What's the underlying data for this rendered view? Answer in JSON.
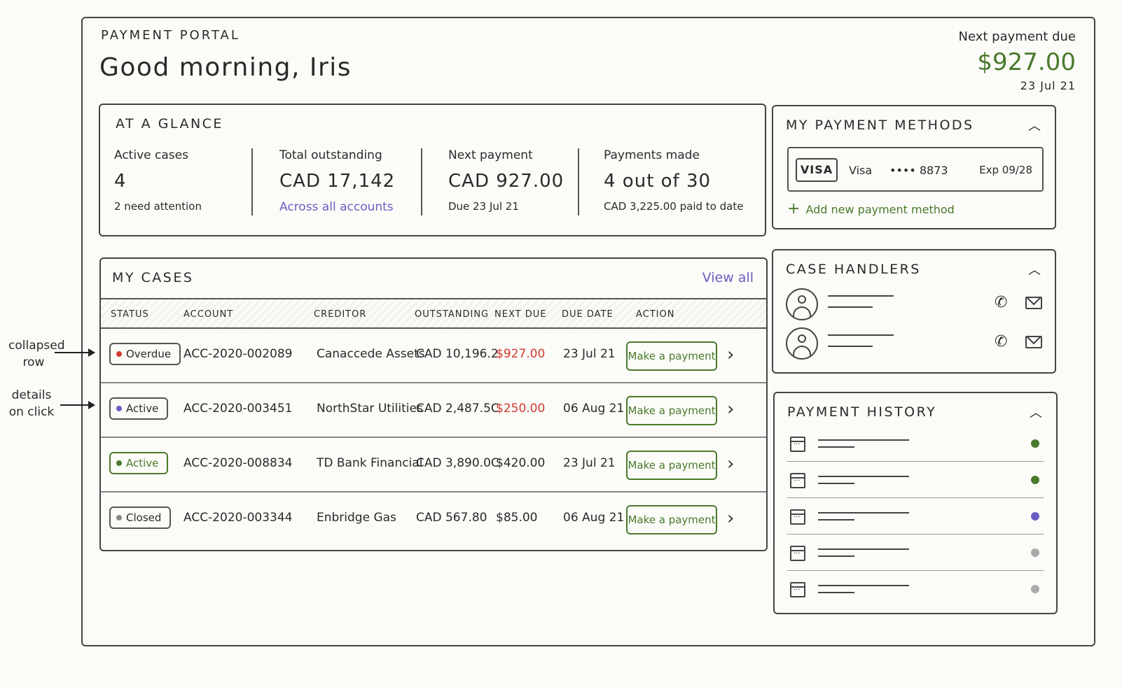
{
  "header": {
    "eyebrow": "PAYMENT PORTAL",
    "greeting": "Good morning, Iris",
    "next_due_label": "Next payment due",
    "next_due_amount": "$927.00",
    "next_due_date": "23 Jul 21"
  },
  "glance": {
    "title": "AT A GLANCE",
    "stats": [
      {
        "label": "Active cases",
        "value": "4",
        "sub": "2 need attention"
      },
      {
        "label": "Total outstanding",
        "value": "CAD 17,142",
        "sub": "Across all accounts"
      },
      {
        "label": "Next payment",
        "value": "CAD 927.00",
        "sub": "Due 23 Jul 21"
      },
      {
        "label": "Payments made",
        "value": "4 out of 30",
        "sub": "CAD 3,225.00 paid to date"
      }
    ]
  },
  "cases": {
    "title": "MY CASES",
    "view_all": "View all",
    "columns": [
      "STATUS",
      "ACCOUNT",
      "CREDITOR",
      "OUTSTANDING",
      "NEXT DUE",
      "DUE DATE",
      "ACTION"
    ],
    "rows": [
      {
        "status": "Overdue",
        "status_color": "#d53a2f",
        "account": "ACC-2020-002089",
        "creditor": "Canaccede Assets",
        "outstanding": "CAD 10,196.2",
        "next_due": "$927.00",
        "next_due_alert": true,
        "due_date": "23 Jul 21",
        "action": "Make a payment"
      },
      {
        "status": "Active",
        "status_color": "#6a5fc4",
        "account": "ACC-2020-003451",
        "creditor": "NorthStar Utilities",
        "outstanding": "CAD 2,487.5C",
        "next_due": "$250.00",
        "next_due_alert": true,
        "due_date": "06 Aug 21",
        "action": "Make a payment"
      },
      {
        "status": "Active",
        "status_color": "#4a7a2c",
        "account": "ACC-2020-008834",
        "creditor": "TD Bank Financial",
        "outstanding": "CAD 3,890.0C",
        "next_due": "$420.00",
        "next_due_alert": false,
        "due_date": "23 Jul 21",
        "action": "Make a payment"
      },
      {
        "status": "Closed",
        "status_color": "#888888",
        "account": "ACC-2020-003344",
        "creditor": "Enbridge Gas",
        "outstanding": "CAD 567.80",
        "next_due": "$85.00",
        "next_due_alert": false,
        "due_date": "06 Aug 21",
        "action": "Make a payment"
      }
    ]
  },
  "annotations": {
    "collapsed": "collapsed row",
    "details": "details on click"
  },
  "payment_methods": {
    "title": "MY PAYMENT METHODS",
    "card_logo": "VISA",
    "card_name": "Visa",
    "card_number": "•••• 8873",
    "card_exp": "Exp 09/28",
    "add_label": "Add new payment method"
  },
  "case_handlers": {
    "title": "CASE HANDLERS",
    "count": 2
  },
  "payment_history": {
    "title": "PAYMENT HISTORY",
    "dots": [
      "#4a7a2c",
      "#4a7a2c",
      "#6a5fc4",
      "#aaaaaa",
      "#aaaaaa"
    ]
  },
  "colors": {
    "accent_green": "#4a7a2c",
    "accent_purple": "#6a5fc4",
    "alert_red": "#d53a2f"
  }
}
